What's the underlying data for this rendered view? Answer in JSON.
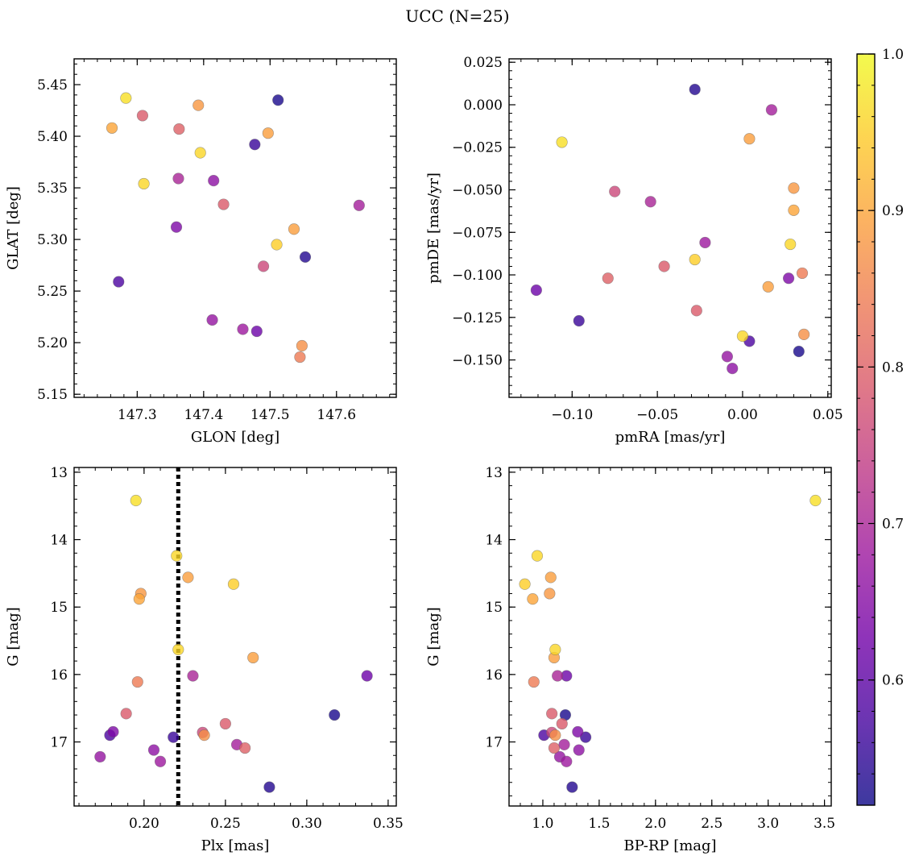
{
  "figure": {
    "title": "UCC (N=25)"
  },
  "colormap": {
    "name": "plasma",
    "stops": [
      "#0d0887",
      "#46039f",
      "#7201a8",
      "#9c179e",
      "#bd3786",
      "#d8576b",
      "#ed7953",
      "#fb9f3a",
      "#fdca26",
      "#f0f921"
    ],
    "range": [
      0.52,
      1.0
    ],
    "ticks": [
      0.6,
      0.7,
      0.8,
      0.9,
      1.0
    ],
    "tick_labels": [
      "0.6",
      "0.7",
      "0.8",
      "0.9",
      "1.0"
    ],
    "point_alpha": 0.8
  },
  "stars": [
    {
      "glon": 147.283,
      "glat": 5.437,
      "pmra": -0.106,
      "pmde": -0.022,
      "plx": 0.195,
      "bprp": 3.42,
      "g": 13.42,
      "prob": 0.97
    },
    {
      "glon": 147.395,
      "glat": 5.384,
      "pmra": 0.028,
      "pmde": -0.082,
      "plx": 0.22,
      "bprp": 0.95,
      "g": 14.24,
      "prob": 0.96
    },
    {
      "glon": 147.51,
      "glat": 5.295,
      "pmra": -0.028,
      "pmde": -0.091,
      "plx": 0.255,
      "bprp": 0.84,
      "g": 14.66,
      "prob": 0.95
    },
    {
      "glon": 147.31,
      "glat": 5.354,
      "pmra": 0.0,
      "pmde": -0.136,
      "plx": 0.221,
      "bprp": 1.11,
      "g": 15.63,
      "prob": 0.96
    },
    {
      "glon": 147.262,
      "glat": 5.408,
      "pmra": 0.03,
      "pmde": -0.062,
      "plx": 0.197,
      "bprp": 0.91,
      "g": 14.88,
      "prob": 0.9
    },
    {
      "glon": 147.392,
      "glat": 5.43,
      "pmra": 0.03,
      "pmde": -0.049,
      "plx": 0.198,
      "bprp": 1.06,
      "g": 14.8,
      "prob": 0.88
    },
    {
      "glon": 147.497,
      "glat": 5.403,
      "pmra": 0.004,
      "pmde": -0.02,
      "plx": 0.227,
      "bprp": 1.07,
      "g": 14.56,
      "prob": 0.89
    },
    {
      "glon": 147.536,
      "glat": 5.31,
      "pmra": 0.015,
      "pmde": -0.107,
      "plx": 0.267,
      "bprp": 1.1,
      "g": 15.75,
      "prob": 0.89
    },
    {
      "glon": 147.548,
      "glat": 5.197,
      "pmra": 0.036,
      "pmde": -0.135,
      "plx": 0.237,
      "bprp": 1.11,
      "g": 16.9,
      "prob": 0.87
    },
    {
      "glon": 147.545,
      "glat": 5.186,
      "pmra": 0.035,
      "pmde": -0.099,
      "plx": 0.196,
      "bprp": 0.92,
      "g": 16.11,
      "prob": 0.84
    },
    {
      "glon": 147.308,
      "glat": 5.42,
      "pmra": -0.027,
      "pmde": -0.121,
      "plx": 0.189,
      "bprp": 1.08,
      "g": 16.58,
      "prob": 0.79
    },
    {
      "glon": 147.363,
      "glat": 5.407,
      "pmra": -0.079,
      "pmde": -0.102,
      "plx": 0.262,
      "bprp": 1.1,
      "g": 17.09,
      "prob": 0.8
    },
    {
      "glon": 147.43,
      "glat": 5.334,
      "pmra": -0.046,
      "pmde": -0.095,
      "plx": 0.25,
      "bprp": 1.17,
      "g": 16.73,
      "prob": 0.79
    },
    {
      "glon": 147.49,
      "glat": 5.274,
      "pmra": -0.075,
      "pmde": -0.051,
      "plx": 0.236,
      "bprp": 1.08,
      "g": 16.86,
      "prob": 0.76
    },
    {
      "glon": 147.362,
      "glat": 5.359,
      "pmra": -0.054,
      "pmde": -0.057,
      "plx": 0.23,
      "bprp": 1.13,
      "g": 16.02,
      "prob": 0.7
    },
    {
      "glon": 147.634,
      "glat": 5.333,
      "pmra": 0.017,
      "pmde": -0.003,
      "plx": 0.257,
      "bprp": 1.19,
      "g": 17.04,
      "prob": 0.69
    },
    {
      "glon": 147.459,
      "glat": 5.213,
      "pmra": -0.022,
      "pmde": -0.081,
      "plx": 0.21,
      "bprp": 1.21,
      "g": 17.29,
      "prob": 0.68
    },
    {
      "glon": 147.413,
      "glat": 5.222,
      "pmra": -0.009,
      "pmde": -0.148,
      "plx": 0.173,
      "bprp": 1.15,
      "g": 17.22,
      "prob": 0.67
    },
    {
      "glon": 147.415,
      "glat": 5.357,
      "pmra": -0.006,
      "pmde": -0.155,
      "plx": 0.206,
      "bprp": 1.32,
      "g": 17.12,
      "prob": 0.66
    },
    {
      "glon": 147.359,
      "glat": 5.312,
      "pmra": 0.027,
      "pmde": -0.102,
      "plx": 0.181,
      "bprp": 1.31,
      "g": 16.85,
      "prob": 0.64
    },
    {
      "glon": 147.48,
      "glat": 5.211,
      "pmra": -0.121,
      "pmde": -0.109,
      "plx": 0.337,
      "bprp": 1.21,
      "g": 16.02,
      "prob": 0.62
    },
    {
      "glon": 147.272,
      "glat": 5.259,
      "pmra": 0.004,
      "pmde": -0.139,
      "plx": 0.179,
      "bprp": 1.01,
      "g": 16.9,
      "prob": 0.58
    },
    {
      "glon": 147.477,
      "glat": 5.392,
      "pmra": -0.096,
      "pmde": -0.127,
      "plx": 0.218,
      "bprp": 1.38,
      "g": 16.93,
      "prob": 0.56
    },
    {
      "glon": 147.512,
      "glat": 5.435,
      "pmra": 0.033,
      "pmde": -0.145,
      "plx": 0.317,
      "bprp": 1.2,
      "g": 16.6,
      "prob": 0.53
    },
    {
      "glon": 147.553,
      "glat": 5.283,
      "pmra": -0.028,
      "pmde": 0.009,
      "plx": 0.277,
      "bprp": 1.26,
      "g": 17.67,
      "prob": 0.54
    }
  ],
  "chart_data": [
    {
      "type": "scatter",
      "xlabel": "GLON [deg]",
      "ylabel": "GLAT [deg]",
      "x_key": "glon",
      "y_key": "glat",
      "xlim": [
        147.205,
        147.69
      ],
      "ylim": [
        5.147,
        5.475
      ],
      "xticks": [
        147.3,
        147.4,
        147.5,
        147.6
      ],
      "xtick_labels": [
        "147.3",
        "147.4",
        "147.5",
        "147.6"
      ],
      "yticks": [
        5.15,
        5.2,
        5.25,
        5.3,
        5.35,
        5.4,
        5.45
      ],
      "ytick_labels": [
        "5.15",
        "5.20",
        "5.25",
        "5.30",
        "5.35",
        "5.40",
        "5.45"
      ],
      "x_minor_step": 0.02,
      "y_minor_step": 0.01,
      "inverted_y": false,
      "vline": null,
      "color_key": "prob"
    },
    {
      "type": "scatter",
      "xlabel": "pmRA [mas/yr]",
      "ylabel": "pmDE [mas/yr]",
      "x_key": "pmra",
      "y_key": "pmde",
      "xlim": [
        -0.137,
        0.052
      ],
      "ylim": [
        -0.172,
        0.027
      ],
      "xticks": [
        -0.1,
        -0.05,
        0.0,
        0.05
      ],
      "xtick_labels": [
        "−0.10",
        "−0.05",
        "0.00",
        "0.05"
      ],
      "yticks": [
        -0.15,
        -0.125,
        -0.1,
        -0.075,
        -0.05,
        -0.025,
        0.0,
        0.025
      ],
      "ytick_labels": [
        "−0.150",
        "−0.125",
        "−0.100",
        "−0.075",
        "−0.050",
        "−0.025",
        "0.000",
        "0.025"
      ],
      "x_minor_step": 0.01,
      "y_minor_step": 0.005,
      "inverted_y": false,
      "vline": null,
      "color_key": "prob"
    },
    {
      "type": "scatter",
      "xlabel": "Plx [mas]",
      "ylabel": "G [mag]",
      "x_key": "plx",
      "y_key": "g",
      "xlim": [
        0.157,
        0.355
      ],
      "ylim": [
        12.93,
        17.95
      ],
      "xticks": [
        0.2,
        0.25,
        0.3,
        0.35
      ],
      "xtick_labels": [
        "0.20",
        "0.25",
        "0.30",
        "0.35"
      ],
      "yticks": [
        13,
        14,
        15,
        16,
        17
      ],
      "ytick_labels": [
        "13",
        "14",
        "15",
        "16",
        "17"
      ],
      "x_minor_step": 0.01,
      "y_minor_step": 0.2,
      "inverted_y": true,
      "vline": 0.221,
      "color_key": "prob"
    },
    {
      "type": "scatter",
      "xlabel": "BP-RP [mag]",
      "ylabel": "G [mag]",
      "x_key": "bprp",
      "y_key": "g",
      "xlim": [
        0.7,
        3.56
      ],
      "ylim": [
        12.93,
        17.95
      ],
      "xticks": [
        1.0,
        1.5,
        2.0,
        2.5,
        3.0,
        3.5
      ],
      "xtick_labels": [
        "1.0",
        "1.5",
        "2.0",
        "2.5",
        "3.0",
        "3.5"
      ],
      "yticks": [
        13,
        14,
        15,
        16,
        17
      ],
      "ytick_labels": [
        "13",
        "14",
        "15",
        "16",
        "17"
      ],
      "x_minor_step": 0.1,
      "y_minor_step": 0.2,
      "inverted_y": true,
      "vline": null,
      "color_key": "prob"
    }
  ]
}
